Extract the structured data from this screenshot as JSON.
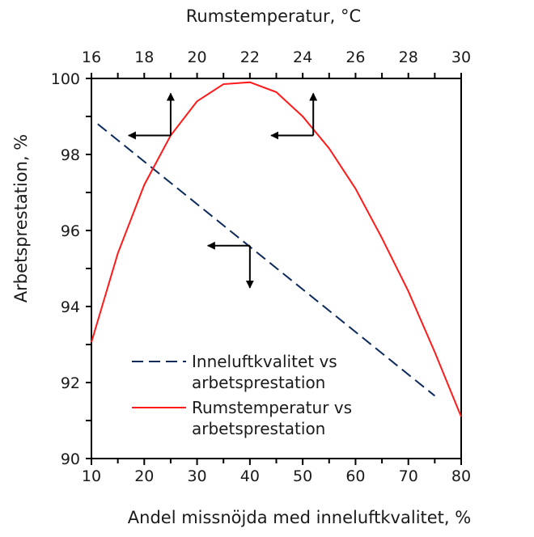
{
  "chart_data": {
    "type": "line",
    "title": "",
    "xlabel": "Andel missnöjda med inneluftkvalitet, %",
    "x2label": "Rumstemperatur, °C",
    "ylabel": "Arbetsprestation, %",
    "xlim": [
      10,
      80
    ],
    "x2lim": [
      16,
      30
    ],
    "ylim": [
      90,
      100
    ],
    "xticks": [
      10,
      20,
      30,
      40,
      50,
      60,
      70,
      80
    ],
    "x2ticks": [
      16,
      18,
      20,
      22,
      24,
      26,
      28,
      30
    ],
    "yticks": [
      90,
      92,
      94,
      96,
      98,
      100
    ],
    "grid": false,
    "legend_position": "bottom-left",
    "series": [
      {
        "name": "Inneluftkvalitet vs arbetsprestation",
        "legend_lines": [
          "Inneluftkvalitet vs",
          "arbetsprestation"
        ],
        "axis": "bottom",
        "style": "dashed",
        "color": "#0d2a5c",
        "x": [
          11.2,
          75
        ],
        "y": [
          98.8,
          91.65
        ]
      },
      {
        "name": "Rumstemperatur vs arbetsprestation",
        "legend_lines": [
          "Rumstemperatur vs",
          "arbetsprestation"
        ],
        "axis": "top",
        "style": "solid",
        "color": "#ff1a1a",
        "x": [
          16,
          17,
          18,
          19,
          20,
          21,
          22,
          23,
          24,
          25,
          26,
          27,
          28,
          29,
          30
        ],
        "y": [
          93.06,
          95.4,
          97.2,
          98.5,
          99.4,
          99.85,
          99.9,
          99.64,
          99.0,
          98.16,
          97.1,
          95.8,
          94.4,
          92.8,
          91.1
        ]
      }
    ],
    "annotations": [
      {
        "axis": "top",
        "x": 19,
        "y": 98.5,
        "arrows": [
          "up",
          "left"
        ]
      },
      {
        "axis": "top",
        "x": 24.4,
        "y": 98.5,
        "arrows": [
          "up",
          "left"
        ]
      },
      {
        "axis": "bottom",
        "x": 40,
        "y": 95.6,
        "arrows": [
          "down",
          "left"
        ]
      }
    ]
  }
}
